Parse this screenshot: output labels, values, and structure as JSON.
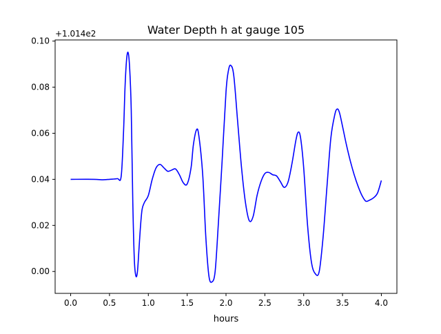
{
  "chart_data": {
    "type": "line",
    "title": "Water Depth h at gauge 105",
    "xlabel": "hours",
    "ylabel": "",
    "offset_label": "+1.014e2",
    "xlim": [
      -0.2,
      4.2
    ],
    "ylim": [
      -0.0095,
      0.1005
    ],
    "xticks": [
      0.0,
      0.5,
      1.0,
      1.5,
      2.0,
      2.5,
      3.0,
      3.5,
      4.0
    ],
    "xtick_labels": [
      "0.0",
      "0.5",
      "1.0",
      "1.5",
      "2.0",
      "2.5",
      "3.0",
      "3.5",
      "4.0"
    ],
    "yticks": [
      0.0,
      0.02,
      0.04,
      0.06,
      0.08,
      0.1
    ],
    "ytick_labels": [
      "0.00",
      "0.02",
      "0.04",
      "0.06",
      "0.08",
      "0.10"
    ],
    "grid": false,
    "series": [
      {
        "color": "#0000ff",
        "x": [
          0.0,
          0.3,
          0.4,
          0.5,
          0.6,
          0.65,
          0.68,
          0.7,
          0.72,
          0.74,
          0.76,
          0.78,
          0.8,
          0.82,
          0.84,
          0.86,
          0.88,
          0.9,
          0.92,
          0.95,
          1.0,
          1.05,
          1.1,
          1.15,
          1.2,
          1.25,
          1.3,
          1.35,
          1.4,
          1.45,
          1.5,
          1.55,
          1.58,
          1.62,
          1.65,
          1.7,
          1.74,
          1.78,
          1.82,
          1.86,
          1.9,
          1.95,
          2.0,
          2.03,
          2.06,
          2.1,
          2.15,
          2.2,
          2.25,
          2.3,
          2.35,
          2.4,
          2.45,
          2.5,
          2.55,
          2.6,
          2.65,
          2.7,
          2.75,
          2.8,
          2.85,
          2.9,
          2.93,
          2.96,
          3.0,
          3.05,
          3.1,
          3.15,
          3.2,
          3.25,
          3.3,
          3.35,
          3.4,
          3.43,
          3.46,
          3.5,
          3.55,
          3.6,
          3.65,
          3.7,
          3.75,
          3.8,
          3.85,
          3.9,
          3.95,
          4.0
        ],
        "y": [
          0.04,
          0.04,
          0.0398,
          0.04,
          0.0403,
          0.0412,
          0.06,
          0.08,
          0.092,
          0.095,
          0.088,
          0.07,
          0.03,
          0.005,
          -0.002,
          0.0,
          0.01,
          0.02,
          0.027,
          0.03,
          0.033,
          0.04,
          0.045,
          0.0465,
          0.045,
          0.0435,
          0.044,
          0.0445,
          0.042,
          0.0385,
          0.038,
          0.045,
          0.055,
          0.0615,
          0.059,
          0.042,
          0.015,
          -0.002,
          -0.0045,
          0.0,
          0.02,
          0.048,
          0.078,
          0.087,
          0.0895,
          0.085,
          0.065,
          0.045,
          0.03,
          0.022,
          0.024,
          0.033,
          0.039,
          0.0425,
          0.043,
          0.042,
          0.0415,
          0.039,
          0.0365,
          0.039,
          0.047,
          0.057,
          0.0605,
          0.058,
          0.045,
          0.02,
          0.004,
          -0.001,
          0.0,
          0.015,
          0.037,
          0.058,
          0.068,
          0.0705,
          0.069,
          0.063,
          0.055,
          0.048,
          0.042,
          0.037,
          0.033,
          0.0305,
          0.031,
          0.032,
          0.034,
          0.0395
        ]
      }
    ]
  }
}
